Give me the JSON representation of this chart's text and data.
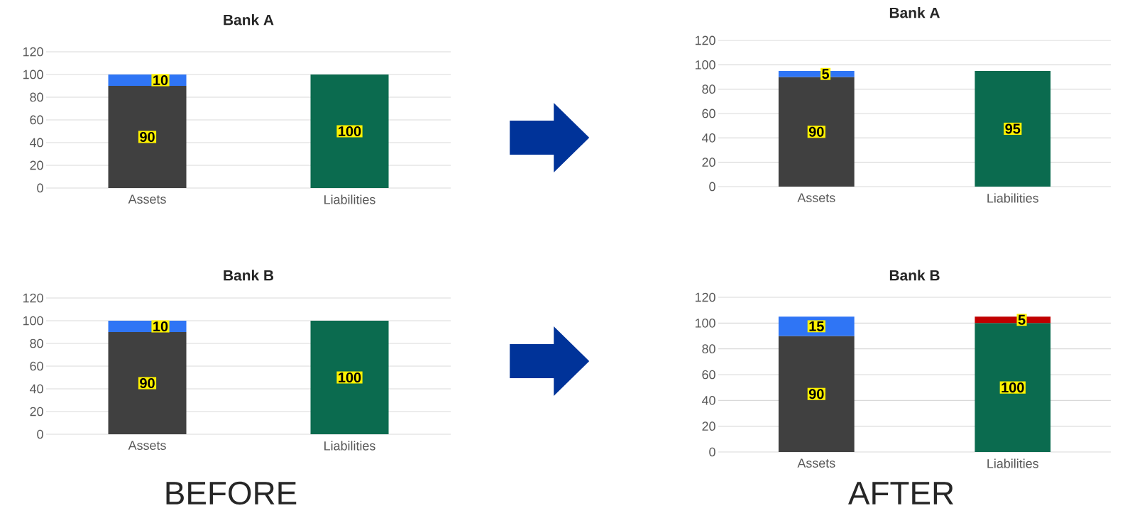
{
  "chart_data": [
    {
      "type": "bar",
      "title": "Bank A",
      "categories": [
        "Assets",
        "Liabilities"
      ],
      "stacked": true,
      "data_labels": true,
      "grid": "y",
      "ylim": [
        0,
        120
      ],
      "yticks": [
        0,
        20,
        40,
        60,
        80,
        100,
        120
      ],
      "series": [
        {
          "colors": [
            "#404040",
            "#0b6b4f"
          ],
          "values": [
            90,
            100
          ]
        },
        {
          "color": "#2f75f5",
          "values": [
            10,
            null
          ]
        }
      ]
    },
    {
      "type": "bar",
      "title": "Bank A",
      "categories": [
        "Assets",
        "Liabilities"
      ],
      "stacked": true,
      "data_labels": true,
      "grid": "y",
      "ylim": [
        0,
        120
      ],
      "yticks": [
        0,
        20,
        40,
        60,
        80,
        100,
        120
      ],
      "series": [
        {
          "colors": [
            "#404040",
            "#0b6b4f"
          ],
          "values": [
            90,
            95
          ]
        },
        {
          "color": "#2f75f5",
          "values": [
            5,
            null
          ]
        }
      ]
    },
    {
      "type": "bar",
      "title": "Bank B",
      "categories": [
        "Assets",
        "Liabilities"
      ],
      "stacked": true,
      "data_labels": true,
      "grid": "y",
      "ylim": [
        0,
        120
      ],
      "yticks": [
        0,
        20,
        40,
        60,
        80,
        100,
        120
      ],
      "annotations": [
        "BEFORE"
      ],
      "series": [
        {
          "colors": [
            "#404040",
            "#0b6b4f"
          ],
          "values": [
            90,
            100
          ]
        },
        {
          "color": "#2f75f5",
          "values": [
            10,
            null
          ]
        }
      ]
    },
    {
      "type": "bar",
      "title": "Bank B",
      "categories": [
        "Assets",
        "Liabilities"
      ],
      "stacked": true,
      "data_labels": true,
      "grid": "y",
      "ylim": [
        0,
        120
      ],
      "yticks": [
        0,
        20,
        40,
        60,
        80,
        100,
        120
      ],
      "annotations": [
        "AFTER"
      ],
      "series": [
        {
          "colors": [
            "#404040",
            "#0b6b4f"
          ],
          "values": [
            90,
            100
          ]
        },
        {
          "colors": [
            "#2f75f5",
            "#c00000"
          ],
          "values": [
            15,
            5
          ]
        }
      ]
    }
  ]
}
